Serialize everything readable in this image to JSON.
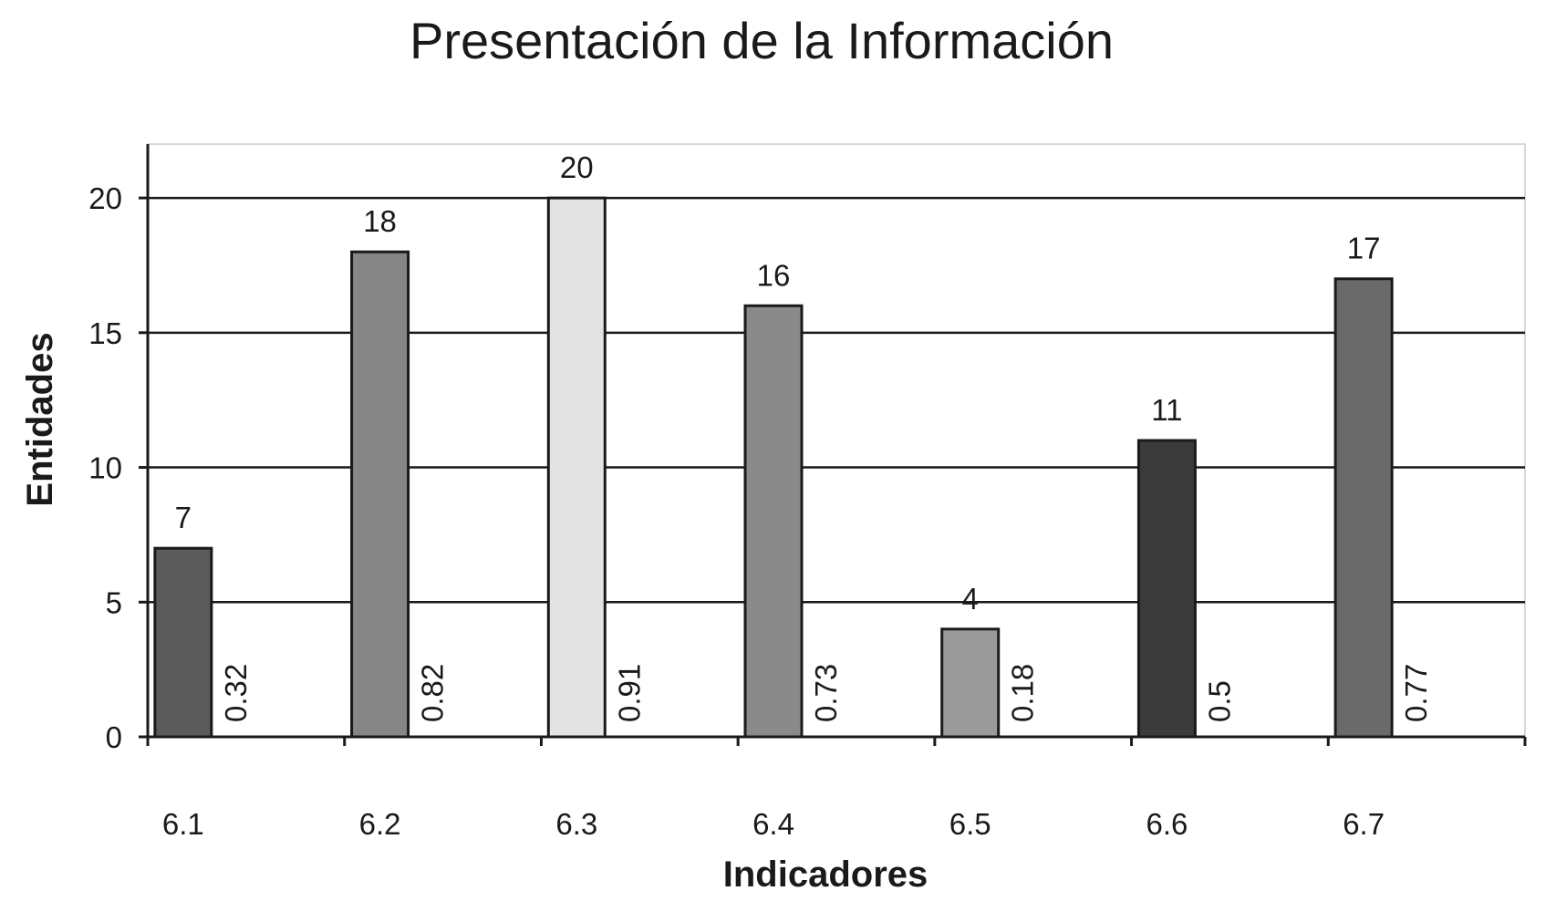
{
  "chart_data": {
    "type": "bar",
    "title": "Presentación de la Información",
    "xlabel": "Indicadores",
    "ylabel": "Entidades",
    "categories": [
      "6.1",
      "6.2",
      "6.3",
      "6.4",
      "6.5",
      "6.6",
      "6.7"
    ],
    "values": [
      7,
      18,
      20,
      16,
      4,
      11,
      17
    ],
    "value_labels": [
      "7",
      "18",
      "20",
      "16",
      "4",
      "11",
      "17"
    ],
    "secondary_labels": [
      "0.32",
      "0.82",
      "0.91",
      "0.73",
      "0.18",
      "0.5",
      "0.77"
    ],
    "bar_colors": [
      "#5b5b5b",
      "#868686",
      "#e3e3e3",
      "#8a8a8a",
      "#9a9a9a",
      "#3a3a3a",
      "#6a6a6a"
    ],
    "ylim": [
      0,
      22
    ],
    "yticks": [
      0,
      5,
      10,
      15,
      20
    ],
    "ytick_labels": [
      "0",
      "5",
      "10",
      "15",
      "20"
    ],
    "grid": true,
    "legend": "none"
  }
}
